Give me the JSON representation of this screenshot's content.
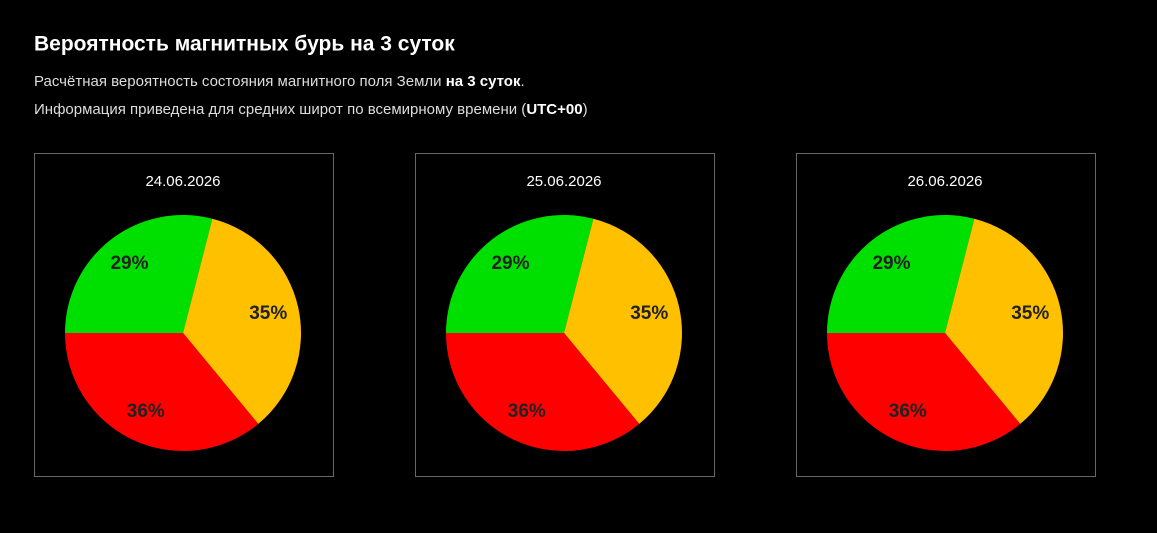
{
  "header": {
    "title": "Вероятность магнитных бурь на 3 суток",
    "line1": {
      "text": "Расчётная вероятность состояния магнитного поля Земли ",
      "bold": "на 3 суток",
      "end": "."
    },
    "line2": {
      "text": "Информация приведена для средних широт по всемирному времени (",
      "bold": "UTC+00",
      "end": ")"
    }
  },
  "chart_data": [
    {
      "type": "pie",
      "title": "24.06.2026",
      "values": [
        29,
        35,
        36
      ],
      "value_labels": [
        "29%",
        "35%",
        "36%"
      ],
      "colors": [
        "#00e000",
        "#ffc000",
        "#ff0000"
      ]
    },
    {
      "type": "pie",
      "title": "25.06.2026",
      "values": [
        29,
        35,
        36
      ],
      "value_labels": [
        "29%",
        "35%",
        "36%"
      ],
      "colors": [
        "#00e000",
        "#ffc000",
        "#ff0000"
      ]
    },
    {
      "type": "pie",
      "title": "26.06.2026",
      "values": [
        29,
        35,
        36
      ],
      "value_labels": [
        "29%",
        "35%",
        "36%"
      ],
      "colors": [
        "#00e000",
        "#ffc000",
        "#ff0000"
      ]
    }
  ]
}
